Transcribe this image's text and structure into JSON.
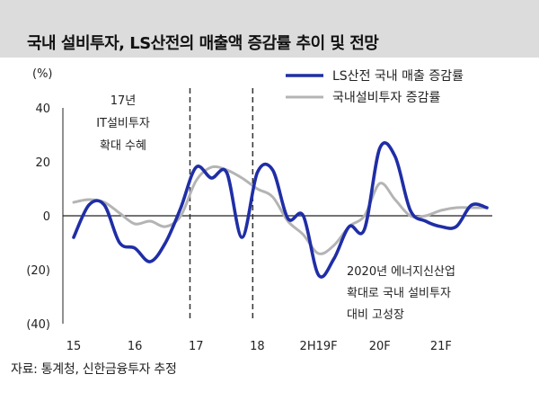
{
  "title": "국내 설비투자, LS산전의 매출액 증감률 추이 및 전망",
  "source": "자료: 통계청, 신한금융투자 추정",
  "chart_data": {
    "type": "line",
    "ylabel": "(%)",
    "ylim": [
      -40,
      40
    ],
    "yticks": [
      40,
      20,
      0,
      -20,
      -40
    ],
    "ytick_labels": [
      "40",
      "20",
      "0",
      "(20)",
      "(40)"
    ],
    "x_labels": [
      "15",
      "16",
      "17",
      "18",
      "2H19F",
      "20F",
      "21F"
    ],
    "x_count": 28,
    "x_label_positions": [
      0,
      4,
      8,
      12,
      16,
      20,
      24
    ],
    "legend": "top-right",
    "series": [
      {
        "name": "LS산전 국내 매출 증감률",
        "color": "#1f2ea6",
        "values": [
          -8,
          4,
          4,
          -10,
          -12,
          -17,
          -10,
          3,
          18,
          14,
          16,
          -8,
          16,
          17,
          -1,
          0,
          -22,
          -16,
          -4,
          -5,
          25,
          22,
          2,
          -2,
          -4,
          -4,
          4,
          3
        ]
      },
      {
        "name": "국내설비투자 증감률",
        "color": "#b4b4b4",
        "values": [
          5,
          6,
          5,
          1,
          -3,
          -2,
          -4,
          0,
          13,
          18,
          17,
          14,
          10,
          7,
          -2,
          -7,
          -14,
          -11,
          -4,
          0,
          12,
          6,
          0,
          0,
          2,
          3,
          3,
          3
        ]
      }
    ],
    "annotations": [
      {
        "text": [
          "17년",
          "IT설비투자",
          "확대 수혜"
        ],
        "at_index": 8
      },
      {
        "text": [
          "2020년 에너지신산업",
          "확대로 국내 설비투자",
          "대비 고성장"
        ],
        "at_index": 16
      }
    ],
    "dashed_vlines_at_index": [
      7.6,
      11.7
    ]
  }
}
